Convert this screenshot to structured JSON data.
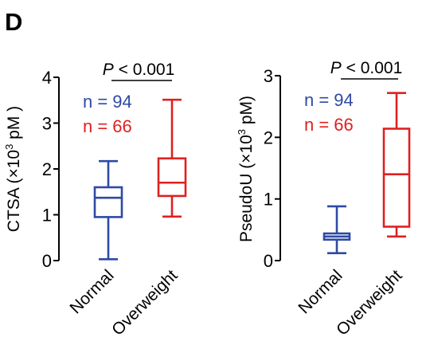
{
  "panel_label": "D",
  "colors": {
    "normal": "#2e4aa3",
    "overweight": "#e02020",
    "axis": "#000000"
  },
  "chart_data": [
    {
      "type": "box",
      "ylabel_main": "CTSA (×10",
      "ylabel_sup": "3",
      "ylabel_end": " pM )",
      "ylim": [
        0,
        4
      ],
      "yticks": [
        0,
        1,
        2,
        3,
        4
      ],
      "categories": [
        "Normal",
        "Overweight"
      ],
      "p_italic": "P",
      "p_text": " < 0.001",
      "n_labels": [
        "n = 94",
        "n = 66"
      ],
      "boxes": [
        {
          "name": "Normal",
          "min": 0.03,
          "q1": 0.95,
          "median": 1.37,
          "q3": 1.6,
          "max": 2.17
        },
        {
          "name": "Overweight",
          "min": 0.96,
          "q1": 1.41,
          "median": 1.7,
          "q3": 2.23,
          "max": 3.51
        }
      ]
    },
    {
      "type": "box",
      "ylabel_main": "PseudoU (×10",
      "ylabel_sup": "3",
      "ylabel_end": " pM)",
      "ylim": [
        0,
        3
      ],
      "yticks": [
        0,
        1,
        2,
        3
      ],
      "categories": [
        "Normal",
        "Overweight"
      ],
      "p_italic": "P",
      "p_text": " < 0.001",
      "n_labels": [
        "n = 94",
        "n = 66"
      ],
      "boxes": [
        {
          "name": "Normal",
          "min": 0.12,
          "q1": 0.34,
          "median": 0.39,
          "q3": 0.44,
          "max": 0.88
        },
        {
          "name": "Overweight",
          "min": 0.39,
          "q1": 0.55,
          "median": 1.4,
          "q3": 2.14,
          "max": 2.72
        }
      ]
    }
  ]
}
